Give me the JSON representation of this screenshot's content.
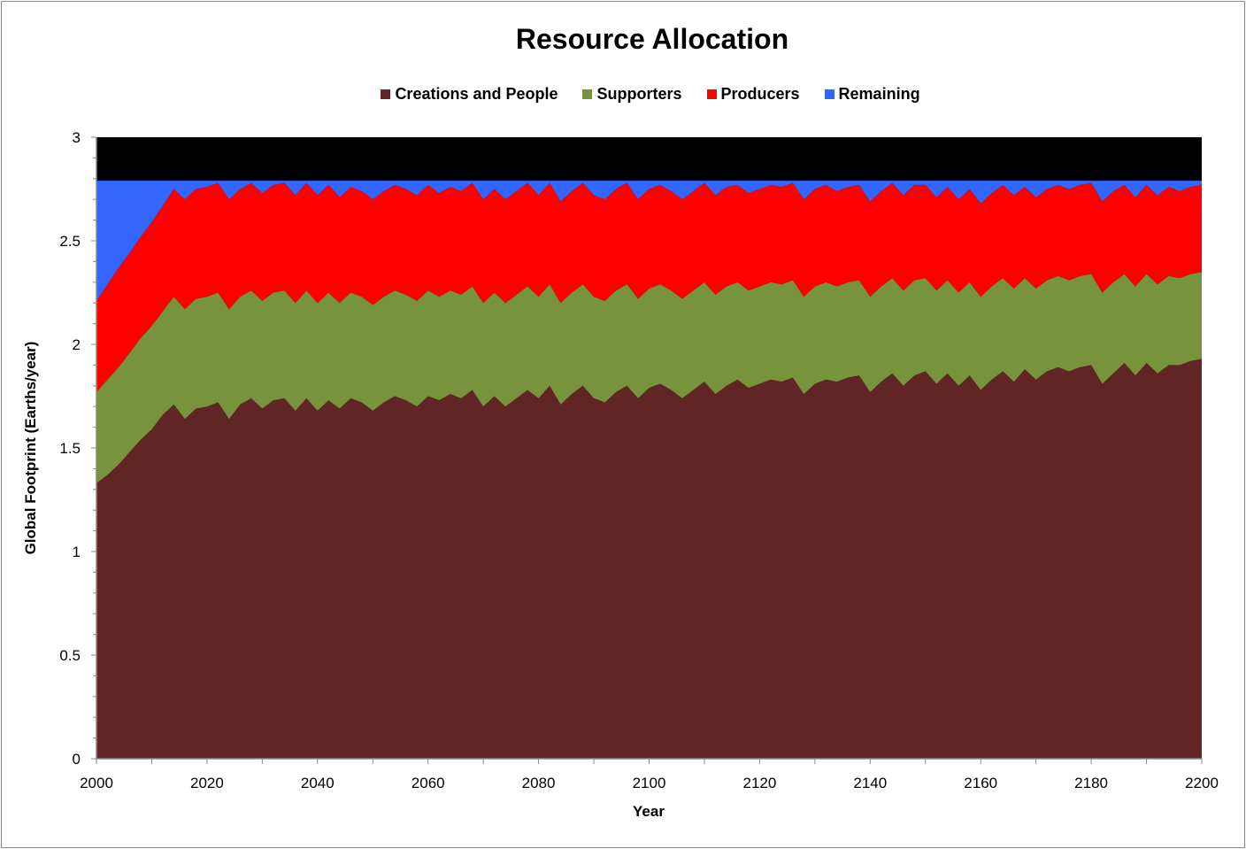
{
  "chart_data": {
    "type": "area",
    "stacked": true,
    "title": "Resource Allocation",
    "xlabel": "Year",
    "ylabel": "Global Footprint (Earths/year)",
    "xlim": [
      2000,
      2200
    ],
    "ylim": [
      0,
      3
    ],
    "x_ticks": [
      "2000",
      "2020",
      "2040",
      "2060",
      "2080",
      "2100",
      "2120",
      "2140",
      "2160",
      "2180",
      "2200"
    ],
    "y_ticks": [
      "0",
      "0.5",
      "1",
      "1.5",
      "2",
      "2.5",
      "3"
    ],
    "grid": false,
    "legend_position": "top",
    "plot_background": "#000000",
    "x": [
      2000,
      2002,
      2004,
      2006,
      2008,
      2010,
      2012,
      2014,
      2016,
      2018,
      2020,
      2022,
      2024,
      2026,
      2028,
      2030,
      2032,
      2034,
      2036,
      2038,
      2040,
      2042,
      2044,
      2046,
      2048,
      2050,
      2052,
      2054,
      2056,
      2058,
      2060,
      2062,
      2064,
      2066,
      2068,
      2070,
      2072,
      2074,
      2076,
      2078,
      2080,
      2082,
      2084,
      2086,
      2088,
      2090,
      2092,
      2094,
      2096,
      2098,
      2100,
      2102,
      2104,
      2106,
      2108,
      2110,
      2112,
      2114,
      2116,
      2118,
      2120,
      2122,
      2124,
      2126,
      2128,
      2130,
      2132,
      2134,
      2136,
      2138,
      2140,
      2142,
      2144,
      2146,
      2148,
      2150,
      2152,
      2154,
      2156,
      2158,
      2160,
      2162,
      2164,
      2166,
      2168,
      2170,
      2172,
      2174,
      2176,
      2178,
      2180,
      2182,
      2184,
      2186,
      2188,
      2190,
      2192,
      2194,
      2196,
      2198,
      2200
    ],
    "series": [
      {
        "name": "Creations and People",
        "color": "#612526",
        "values": [
          1.33,
          1.37,
          1.42,
          1.48,
          1.54,
          1.59,
          1.66,
          1.71,
          1.64,
          1.69,
          1.7,
          1.72,
          1.64,
          1.71,
          1.74,
          1.69,
          1.73,
          1.74,
          1.68,
          1.74,
          1.68,
          1.73,
          1.69,
          1.74,
          1.72,
          1.68,
          1.72,
          1.75,
          1.73,
          1.7,
          1.75,
          1.73,
          1.76,
          1.74,
          1.78,
          1.7,
          1.75,
          1.7,
          1.74,
          1.78,
          1.74,
          1.8,
          1.71,
          1.76,
          1.8,
          1.74,
          1.72,
          1.77,
          1.8,
          1.74,
          1.79,
          1.81,
          1.78,
          1.74,
          1.78,
          1.82,
          1.76,
          1.8,
          1.83,
          1.79,
          1.81,
          1.83,
          1.82,
          1.84,
          1.76,
          1.81,
          1.83,
          1.82,
          1.84,
          1.85,
          1.77,
          1.82,
          1.86,
          1.8,
          1.85,
          1.87,
          1.81,
          1.86,
          1.8,
          1.85,
          1.78,
          1.83,
          1.87,
          1.82,
          1.88,
          1.83,
          1.87,
          1.89,
          1.87,
          1.89,
          1.9,
          1.81,
          1.86,
          1.91,
          1.85,
          1.91,
          1.86,
          1.9,
          1.9,
          1.92,
          1.93
        ]
      },
      {
        "name": "Supporters",
        "color": "#77933c",
        "values": [
          0.44,
          0.46,
          0.47,
          0.48,
          0.49,
          0.5,
          0.5,
          0.52,
          0.53,
          0.53,
          0.53,
          0.53,
          0.53,
          0.52,
          0.52,
          0.52,
          0.52,
          0.52,
          0.52,
          0.52,
          0.52,
          0.52,
          0.51,
          0.51,
          0.51,
          0.51,
          0.51,
          0.51,
          0.51,
          0.51,
          0.51,
          0.5,
          0.5,
          0.5,
          0.5,
          0.5,
          0.5,
          0.5,
          0.5,
          0.5,
          0.49,
          0.49,
          0.49,
          0.49,
          0.49,
          0.49,
          0.49,
          0.49,
          0.49,
          0.48,
          0.48,
          0.48,
          0.48,
          0.48,
          0.48,
          0.48,
          0.48,
          0.48,
          0.47,
          0.47,
          0.47,
          0.47,
          0.47,
          0.47,
          0.47,
          0.47,
          0.47,
          0.46,
          0.46,
          0.46,
          0.46,
          0.46,
          0.46,
          0.46,
          0.46,
          0.45,
          0.45,
          0.45,
          0.45,
          0.45,
          0.45,
          0.45,
          0.45,
          0.45,
          0.44,
          0.44,
          0.44,
          0.44,
          0.44,
          0.44,
          0.44,
          0.44,
          0.44,
          0.43,
          0.43,
          0.43,
          0.43,
          0.43,
          0.42,
          0.42,
          0.42
        ]
      },
      {
        "name": "Producers",
        "color": "#ff0000",
        "values": [
          0.44,
          0.46,
          0.48,
          0.48,
          0.49,
          0.5,
          0.51,
          0.52,
          0.53,
          0.53,
          0.53,
          0.53,
          0.53,
          0.52,
          0.52,
          0.52,
          0.52,
          0.52,
          0.52,
          0.52,
          0.52,
          0.52,
          0.51,
          0.51,
          0.51,
          0.51,
          0.51,
          0.51,
          0.51,
          0.51,
          0.51,
          0.5,
          0.5,
          0.5,
          0.5,
          0.5,
          0.5,
          0.5,
          0.5,
          0.5,
          0.49,
          0.49,
          0.49,
          0.49,
          0.49,
          0.49,
          0.49,
          0.49,
          0.49,
          0.48,
          0.48,
          0.48,
          0.48,
          0.48,
          0.48,
          0.48,
          0.48,
          0.48,
          0.47,
          0.47,
          0.47,
          0.47,
          0.47,
          0.47,
          0.47,
          0.47,
          0.47,
          0.46,
          0.46,
          0.46,
          0.46,
          0.46,
          0.46,
          0.46,
          0.46,
          0.45,
          0.45,
          0.45,
          0.45,
          0.45,
          0.45,
          0.45,
          0.45,
          0.45,
          0.44,
          0.44,
          0.44,
          0.44,
          0.44,
          0.44,
          0.44,
          0.44,
          0.44,
          0.43,
          0.43,
          0.43,
          0.43,
          0.43,
          0.42,
          0.42,
          0.42
        ]
      },
      {
        "name": "Remaining",
        "color": "#3366ff",
        "values": [
          0.58,
          0.5,
          0.42,
          0.35,
          0.27,
          0.2,
          0.12,
          0.04,
          0.09,
          0.04,
          0.03,
          0.01,
          0.09,
          0.04,
          0.01,
          0.06,
          0.02,
          0.01,
          0.07,
          0.01,
          0.07,
          0.02,
          0.08,
          0.03,
          0.05,
          0.09,
          0.05,
          0.02,
          0.04,
          0.07,
          0.02,
          0.06,
          0.03,
          0.05,
          0.01,
          0.09,
          0.04,
          0.09,
          0.05,
          0.01,
          0.07,
          0.01,
          0.1,
          0.05,
          0.01,
          0.07,
          0.09,
          0.04,
          0.01,
          0.09,
          0.04,
          0.02,
          0.05,
          0.09,
          0.05,
          0.01,
          0.07,
          0.03,
          0.02,
          0.06,
          0.04,
          0.02,
          0.03,
          0.01,
          0.09,
          0.04,
          0.02,
          0.05,
          0.03,
          0.02,
          0.1,
          0.05,
          0.01,
          0.07,
          0.02,
          0.02,
          0.08,
          0.03,
          0.09,
          0.04,
          0.11,
          0.06,
          0.02,
          0.07,
          0.03,
          0.08,
          0.04,
          0.02,
          0.04,
          0.02,
          0.01,
          0.1,
          0.05,
          0.02,
          0.08,
          0.02,
          0.07,
          0.03,
          0.05,
          0.03,
          0.02
        ]
      }
    ]
  }
}
